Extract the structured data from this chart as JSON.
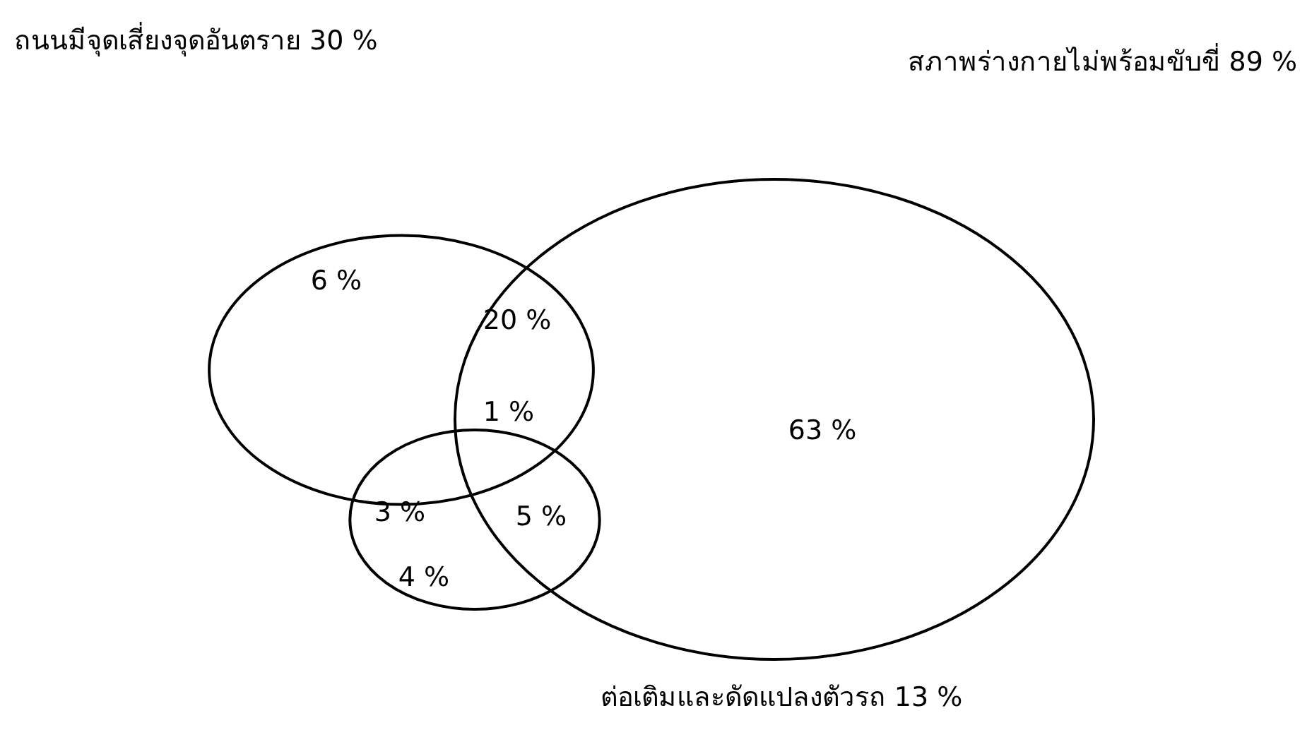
{
  "chart_data": {
    "type": "other",
    "categories": [
      "ถนนมีจุดเสี่ยงจุดอันตราย",
      "สภาพร่างกายไม่พร้อมขับขี่",
      "ต่อเติมและดัดแปลงตัวรถ"
    ],
    "values": [
      30,
      89,
      13
    ],
    "value_labels": [
      "30 %",
      "89 %",
      "13 %"
    ],
    "annotations": [
      "6 %",
      "20 %",
      "1 %",
      "3 %",
      "5 %",
      "4 %",
      "63 %"
    ]
  }
}
